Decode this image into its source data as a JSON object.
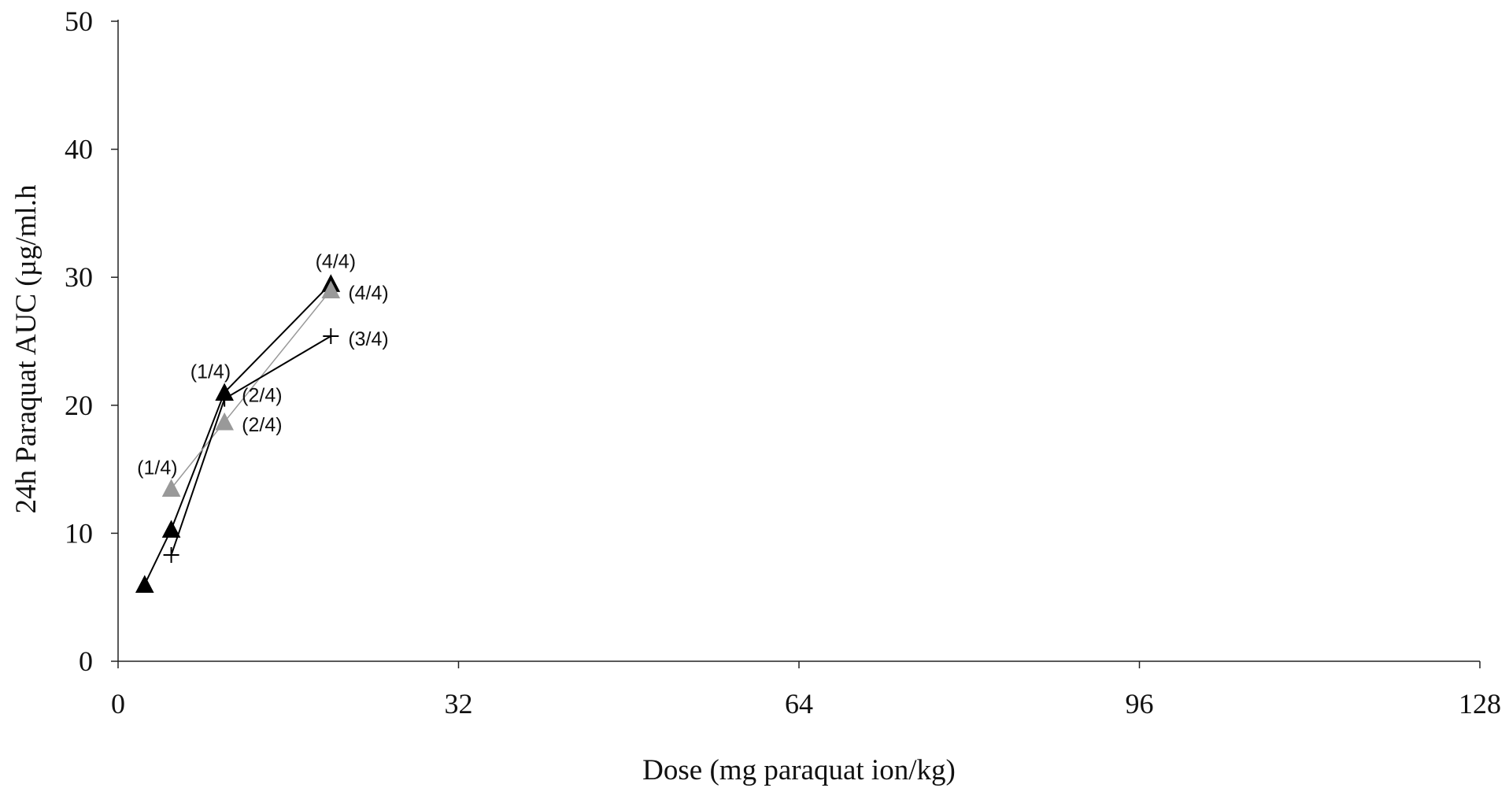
{
  "chart_data": {
    "type": "line",
    "title": "",
    "xlabel": "Dose (mg paraquat ion/kg)",
    "ylabel": "24h Paraquat AUC (µg/ml.h",
    "xlim": [
      0,
      128
    ],
    "ylim": [
      0,
      50
    ],
    "xticks": [
      0,
      32,
      64,
      96,
      128
    ],
    "yticks": [
      0,
      10,
      20,
      30,
      40,
      50
    ],
    "grid": false,
    "legend": "none",
    "series": [
      {
        "marker": "triangle",
        "color": "#000000",
        "x": [
          2.5,
          5,
          10,
          20
        ],
        "y": [
          6,
          10.3,
          21,
          29.5
        ]
      },
      {
        "marker": "triangle",
        "color": "#999999",
        "x": [
          5,
          10,
          20
        ],
        "y": [
          13.5,
          18.7,
          29
        ]
      },
      {
        "marker": "plus",
        "color": "#000000",
        "x": [
          5,
          10,
          20
        ],
        "y": [
          8.3,
          20.5,
          25.4
        ]
      }
    ],
    "annotations": [
      {
        "text": "(1/4)",
        "x": 5,
        "y": 13.5,
        "pos": "left-above"
      },
      {
        "text": "(1/4)",
        "x": 10,
        "y": 21,
        "pos": "left-above"
      },
      {
        "text": "(2/4)",
        "x": 10,
        "y": 21,
        "pos": "right"
      },
      {
        "text": "(2/4)",
        "x": 10,
        "y": 18.7,
        "pos": "right"
      },
      {
        "text": "(4/4)",
        "x": 20,
        "y": 29.5,
        "pos": "above"
      },
      {
        "text": "(4/4)",
        "x": 20,
        "y": 29,
        "pos": "right"
      },
      {
        "text": "(3/4)",
        "x": 20,
        "y": 25.4,
        "pos": "right"
      }
    ]
  }
}
